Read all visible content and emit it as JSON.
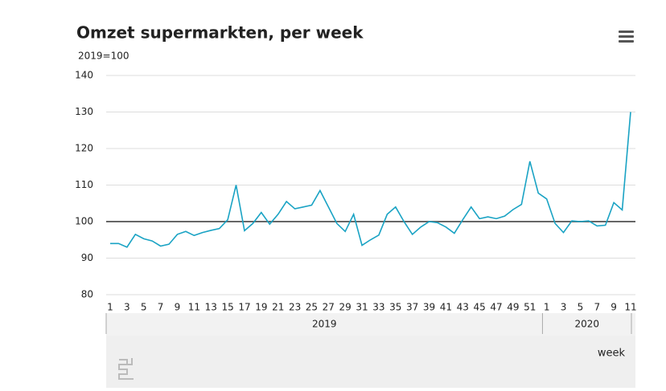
{
  "chart_data": {
    "type": "line",
    "title": "Omzet supermarkten, per week",
    "subtitle": "2019=100",
    "x_label": "week",
    "category_groups": [
      {
        "name": "2019",
        "categories": [
          "1",
          null,
          "3",
          null,
          "5",
          null,
          "7",
          null,
          "9",
          null,
          "11",
          null,
          "13",
          null,
          "15",
          null,
          "17",
          null,
          "19",
          null,
          "21",
          null,
          "23",
          null,
          "25",
          null,
          "27",
          null,
          "29",
          null,
          "31",
          null,
          "33",
          null,
          "35",
          null,
          "37",
          null,
          "39",
          null,
          "41",
          null,
          "43",
          null,
          "45",
          null,
          "47",
          null,
          "49",
          null,
          "51",
          null
        ]
      },
      {
        "name": "2020",
        "categories": [
          "1",
          null,
          "3",
          null,
          "5",
          null,
          "7",
          null,
          "9",
          null,
          "11"
        ]
      }
    ],
    "series": [
      {
        "name": "Omzet",
        "color": "#1aa3c4",
        "values": [
          94,
          94,
          93,
          96.5,
          95.3,
          94.7,
          93.3,
          93.8,
          96.5,
          97.3,
          96.2,
          97,
          97.6,
          98.1,
          100.5,
          110,
          97.5,
          99.5,
          102.5,
          99.3,
          102,
          105.5,
          103.5,
          104,
          104.5,
          108.5,
          104,
          99.5,
          97.3,
          102,
          93.5,
          95,
          96.3,
          102,
          104,
          100,
          96.5,
          98.5,
          100,
          99.7,
          98.5,
          96.8,
          100.5,
          104,
          100.8,
          101.3,
          100.8,
          101.5,
          103.3,
          104.7,
          116.5,
          107.8,
          106.2,
          99.5,
          97,
          100.2,
          100,
          100.2,
          98.8,
          99,
          105.2,
          103.2,
          130
        ]
      }
    ],
    "baseline": 100,
    "ylim": [
      80,
      140
    ],
    "yticks": [
      80,
      90,
      100,
      110,
      120,
      130,
      140
    ],
    "grid": true
  }
}
